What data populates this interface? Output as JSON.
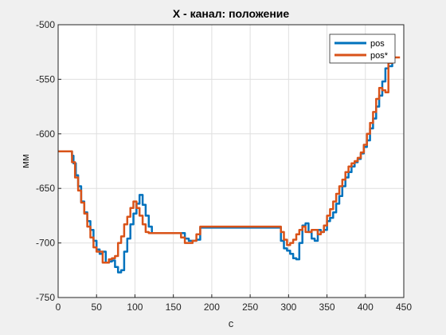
{
  "chart_data": {
    "type": "line",
    "title": "X - канал: положение",
    "xlabel": "с",
    "ylabel": "мм",
    "xlim": [
      0,
      450
    ],
    "ylim": [
      -750,
      -500
    ],
    "xticks": [
      0,
      50,
      100,
      150,
      200,
      250,
      300,
      350,
      400,
      450
    ],
    "yticks": [
      -750,
      -700,
      -650,
      -600,
      -550,
      -500
    ],
    "grid": true,
    "legend_position": "top-right",
    "series": [
      {
        "name": "pos",
        "color": "#0072BD",
        "x": [
          0,
          15,
          18,
          20,
          23,
          26,
          30,
          34,
          38,
          42,
          46,
          50,
          54,
          58,
          62,
          66,
          70,
          74,
          78,
          82,
          86,
          90,
          94,
          98,
          102,
          106,
          110,
          114,
          118,
          122,
          126,
          130,
          135,
          140,
          145,
          150,
          155,
          160,
          165,
          170,
          175,
          180,
          185,
          190,
          200,
          210,
          220,
          230,
          240,
          250,
          260,
          270,
          280,
          285,
          290,
          294,
          298,
          302,
          306,
          310,
          314,
          318,
          322,
          326,
          330,
          334,
          338,
          342,
          346,
          350,
          354,
          358,
          362,
          366,
          370,
          374,
          378,
          382,
          386,
          390,
          394,
          398,
          402,
          406,
          410,
          414,
          418,
          422,
          426,
          430,
          435
        ],
        "y": [
          -616,
          -616,
          -620,
          -627,
          -638,
          -648,
          -662,
          -672,
          -680,
          -688,
          -698,
          -706,
          -710,
          -708,
          -718,
          -717,
          -716,
          -722,
          -727,
          -725,
          -708,
          -696,
          -683,
          -673,
          -664,
          -656,
          -665,
          -675,
          -685,
          -691,
          -691,
          -691,
          -691,
          -691,
          -691,
          -691,
          -691,
          -691,
          -696,
          -698,
          -698,
          -697,
          -686,
          -686,
          -686,
          -686,
          -686,
          -686,
          -686,
          -686,
          -686,
          -686,
          -686,
          -686,
          -698,
          -705,
          -707,
          -710,
          -714,
          -715,
          -700,
          -684,
          -682,
          -690,
          -696,
          -698,
          -688,
          -690,
          -688,
          -680,
          -677,
          -672,
          -664,
          -657,
          -648,
          -640,
          -635,
          -630,
          -626,
          -623,
          -618,
          -612,
          -606,
          -595,
          -586,
          -575,
          -565,
          -552,
          -540,
          -538,
          -530
        ]
      },
      {
        "name": "pos*",
        "color": "#D95319",
        "x": [
          0,
          15,
          18,
          22,
          26,
          30,
          34,
          38,
          42,
          46,
          50,
          54,
          58,
          62,
          66,
          70,
          74,
          78,
          82,
          86,
          90,
          94,
          98,
          102,
          106,
          110,
          114,
          118,
          122,
          126,
          130,
          135,
          140,
          145,
          150,
          155,
          160,
          165,
          170,
          175,
          180,
          185,
          190,
          200,
          210,
          220,
          230,
          240,
          250,
          260,
          270,
          280,
          285,
          290,
          294,
          298,
          302,
          306,
          310,
          314,
          318,
          322,
          326,
          330,
          334,
          338,
          342,
          346,
          350,
          354,
          358,
          362,
          366,
          370,
          374,
          378,
          382,
          386,
          390,
          394,
          398,
          402,
          406,
          410,
          414,
          418,
          422,
          426,
          430,
          435,
          445
        ],
        "y": [
          -616,
          -616,
          -626,
          -640,
          -652,
          -663,
          -673,
          -685,
          -695,
          -704,
          -708,
          -708,
          -718,
          -718,
          -715,
          -714,
          -712,
          -700,
          -694,
          -683,
          -676,
          -668,
          -662,
          -668,
          -675,
          -683,
          -690,
          -691,
          -691,
          -691,
          -691,
          -691,
          -691,
          -691,
          -691,
          -691,
          -695,
          -700,
          -700,
          -698,
          -692,
          -685,
          -685,
          -685,
          -685,
          -685,
          -685,
          -685,
          -685,
          -685,
          -685,
          -685,
          -685,
          -690,
          -697,
          -702,
          -700,
          -697,
          -692,
          -688,
          -685,
          -690,
          -690,
          -688,
          -688,
          -692,
          -690,
          -684,
          -675,
          -669,
          -662,
          -655,
          -648,
          -642,
          -635,
          -630,
          -627,
          -625,
          -622,
          -617,
          -610,
          -600,
          -590,
          -580,
          -568,
          -558,
          -560,
          -562,
          -535,
          -530,
          -530
        ]
      }
    ]
  }
}
